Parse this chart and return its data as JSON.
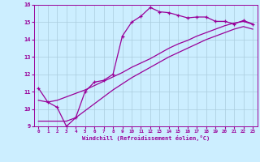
{
  "xlabel": "Windchill (Refroidissement éolien,°C)",
  "bg_color": "#cceeff",
  "line_color": "#990099",
  "grid_color": "#aaccdd",
  "xlim": [
    -0.5,
    23.5
  ],
  "ylim": [
    9,
    16
  ],
  "xticks": [
    0,
    1,
    2,
    3,
    4,
    5,
    6,
    7,
    8,
    9,
    10,
    11,
    12,
    13,
    14,
    15,
    16,
    17,
    18,
    19,
    20,
    21,
    22,
    23
  ],
  "yticks": [
    9,
    10,
    11,
    12,
    13,
    14,
    15,
    16
  ],
  "line1_x": [
    0,
    1,
    2,
    3,
    4,
    5,
    6,
    7,
    8,
    9,
    10,
    11,
    12,
    13,
    14,
    15,
    16,
    17,
    18,
    19,
    20,
    21,
    22,
    23
  ],
  "line1_y": [
    11.2,
    10.4,
    10.1,
    9.0,
    9.5,
    11.0,
    11.55,
    11.65,
    12.0,
    14.2,
    15.0,
    15.35,
    15.85,
    15.6,
    15.55,
    15.4,
    15.25,
    15.3,
    15.3,
    15.05,
    15.05,
    14.9,
    15.1,
    14.9
  ],
  "line2_x": [
    0,
    1,
    2,
    3,
    4,
    5,
    6,
    7,
    8,
    9,
    10,
    11,
    12,
    13,
    14,
    15,
    16,
    17,
    18,
    19,
    20,
    21,
    22,
    23
  ],
  "line2_y": [
    10.5,
    10.4,
    10.5,
    10.7,
    10.9,
    11.1,
    11.35,
    11.6,
    11.85,
    12.1,
    12.4,
    12.65,
    12.9,
    13.2,
    13.5,
    13.75,
    13.95,
    14.2,
    14.4,
    14.6,
    14.8,
    14.95,
    15.05,
    14.88
  ],
  "line3_x": [
    0,
    1,
    2,
    3,
    4,
    5,
    6,
    7,
    8,
    9,
    10,
    11,
    12,
    13,
    14,
    15,
    16,
    17,
    18,
    19,
    20,
    21,
    22,
    23
  ],
  "line3_y": [
    9.3,
    9.3,
    9.3,
    9.3,
    9.5,
    9.9,
    10.3,
    10.7,
    11.1,
    11.45,
    11.8,
    12.1,
    12.4,
    12.7,
    13.0,
    13.25,
    13.5,
    13.75,
    14.0,
    14.2,
    14.4,
    14.6,
    14.75,
    14.6
  ]
}
